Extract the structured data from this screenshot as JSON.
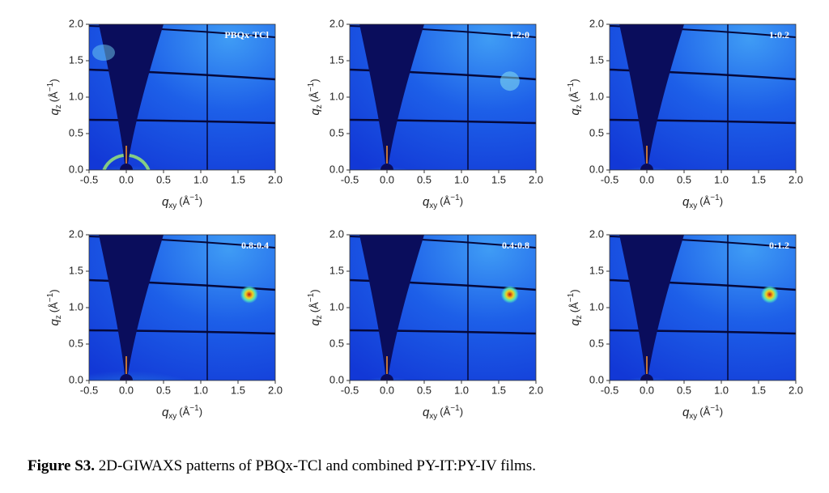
{
  "figure": {
    "panels": [
      {
        "label": "PBQx-TCl"
      },
      {
        "label": "1.2:0"
      },
      {
        "label": "1:0.2"
      },
      {
        "label": "0.8:0.4"
      },
      {
        "label": "0.4:0.8"
      },
      {
        "label": "0:1.2"
      }
    ],
    "xlim": [
      -0.5,
      2.0
    ],
    "ylim": [
      0,
      2.0
    ],
    "xticks": [
      {
        "value": -0.5,
        "label": "-0.5"
      },
      {
        "value": 0,
        "label": "0.0"
      },
      0.5,
      {
        "value": 1,
        "label": "1.0"
      },
      1.5,
      {
        "value": 2,
        "label": "2.0"
      }
    ],
    "yticks": [
      {
        "value": 0,
        "label": "0.0"
      },
      0.5,
      {
        "value": 1,
        "label": "1.0"
      },
      1.5,
      {
        "value": 2,
        "label": "2.0"
      }
    ],
    "xlabel": {
      "symbol": "q",
      "sub": "xy",
      "open": "(Å",
      "sup": "−1",
      "close": ")"
    },
    "ylabel": {
      "symbol": "q",
      "sub": "z",
      "open": "(Å",
      "sup": "−1",
      "close": ")"
    }
  },
  "caption": {
    "bold": "Figure S3.",
    "text": " 2D-GIWAXS patterns of PBQx-TCl and combined PY-IT:PY-IV films."
  }
}
